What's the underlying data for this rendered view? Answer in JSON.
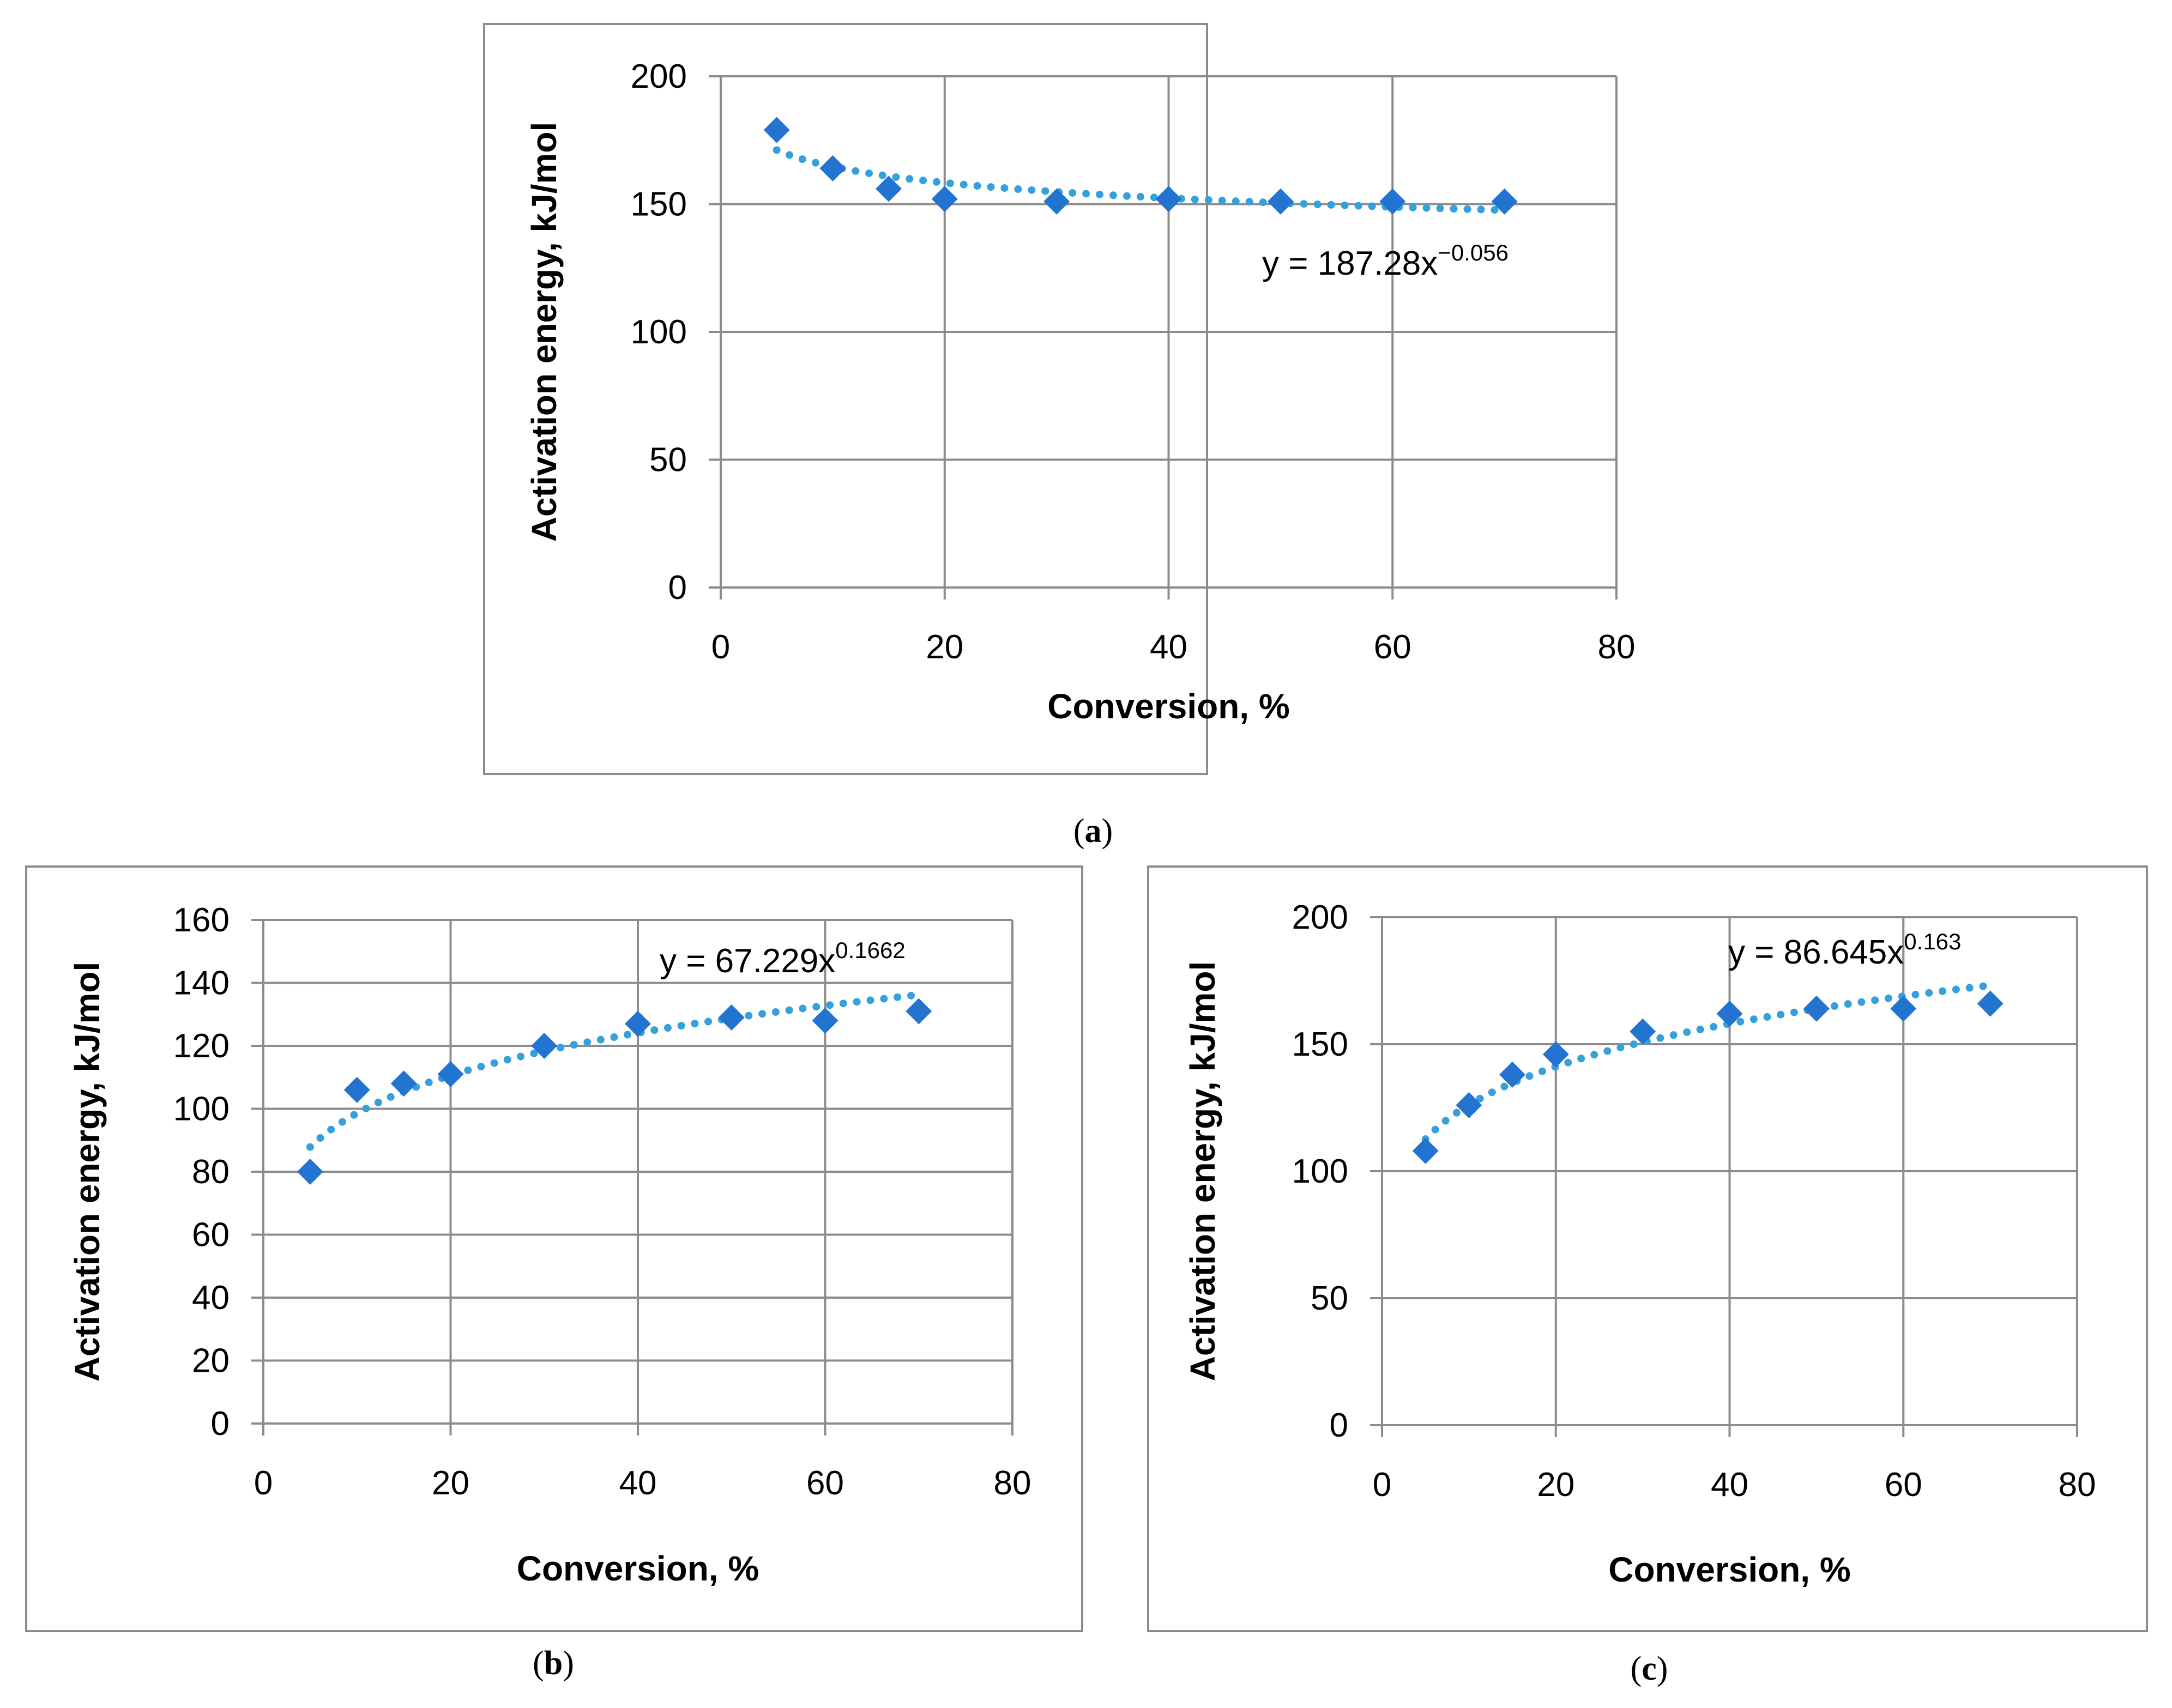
{
  "colors": {
    "marker": "#2374d0",
    "trendline": "#36a0dc",
    "grid": "#8c8c8c",
    "frame": "#8c8c8c"
  },
  "chart_data": [
    {
      "panel": "a",
      "type": "scatter",
      "label_open": "(",
      "label_letter": "a",
      "label_close": ")",
      "xlabel": "Conversion, %",
      "ylabel": "Activation energy, kJ/mol",
      "xlim": [
        0,
        80
      ],
      "ylim": [
        0,
        200
      ],
      "xticks": [
        0,
        20,
        40,
        60,
        80
      ],
      "yticks": [
        0,
        50,
        100,
        150,
        200
      ],
      "grid": true,
      "series": [
        {
          "name": "Activation energy",
          "marker": "diamond",
          "x": [
            5,
            10,
            15,
            20,
            30,
            40,
            50,
            60,
            70
          ],
          "y": [
            179,
            164,
            156,
            152,
            151,
            152,
            151,
            151,
            151
          ]
        }
      ],
      "trendline": {
        "type": "power",
        "coefficient": 187.28,
        "exponent": -0.056,
        "x_range": [
          5,
          70
        ],
        "equation_base": "y = 187.28x",
        "equation_exponent": "−0.056"
      }
    },
    {
      "panel": "b",
      "type": "scatter",
      "label_open": "(",
      "label_letter": "b",
      "label_close": ")",
      "xlabel": "Conversion, %",
      "ylabel": "Activation energy, kJ/mol",
      "xlim": [
        0,
        80
      ],
      "ylim": [
        0,
        160
      ],
      "xticks": [
        0,
        20,
        40,
        60,
        80
      ],
      "yticks": [
        0,
        20,
        40,
        60,
        80,
        100,
        120,
        140,
        160
      ],
      "grid": true,
      "series": [
        {
          "name": "Activation energy",
          "marker": "diamond",
          "x": [
            5,
            10,
            15,
            20,
            30,
            40,
            50,
            60,
            70
          ],
          "y": [
            80,
            106,
            108,
            111,
            120,
            127,
            129,
            128,
            131
          ]
        }
      ],
      "trendline": {
        "type": "power",
        "coefficient": 67.229,
        "exponent": 0.1662,
        "x_range": [
          5,
          70
        ],
        "equation_base": "y = 67.229x",
        "equation_exponent": "0.1662"
      }
    },
    {
      "panel": "c",
      "type": "scatter",
      "label_open": "(",
      "label_letter": "c",
      "label_close": ")",
      "xlabel": "Conversion, %",
      "ylabel": "Activation energy, kJ/mol",
      "xlim": [
        0,
        80
      ],
      "ylim": [
        0,
        200
      ],
      "xticks": [
        0,
        20,
        40,
        60,
        80
      ],
      "yticks": [
        0,
        50,
        100,
        150,
        200
      ],
      "grid": true,
      "series": [
        {
          "name": "Activation energy",
          "marker": "diamond",
          "x": [
            5,
            10,
            15,
            20,
            30,
            40,
            50,
            60,
            70
          ],
          "y": [
            108,
            126,
            138,
            146,
            155,
            162,
            164,
            164,
            166
          ]
        }
      ],
      "trendline": {
        "type": "power",
        "coefficient": 86.645,
        "exponent": 0.163,
        "x_range": [
          5,
          70
        ],
        "equation_base": "y = 86.645x",
        "equation_exponent": "0.163"
      }
    }
  ]
}
